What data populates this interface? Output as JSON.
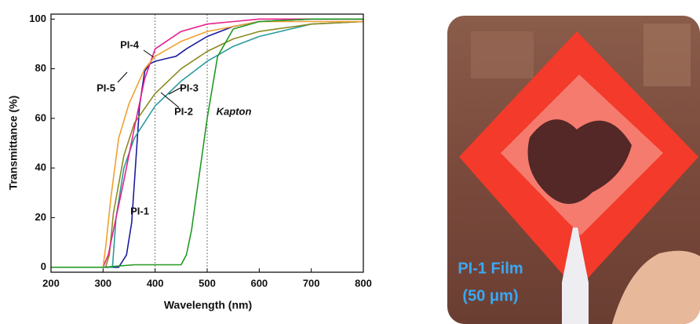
{
  "chart_data": {
    "type": "line",
    "xlabel": "Wavelength (nm)",
    "ylabel": "Transmittance (%)",
    "xlim": [
      200,
      800
    ],
    "ylim": [
      -2,
      102
    ],
    "xticks": [
      200,
      300,
      400,
      500,
      600,
      700,
      800
    ],
    "yticks": [
      0,
      20,
      40,
      60,
      80,
      100
    ],
    "reference_lines_x": [
      400,
      500
    ],
    "series": [
      {
        "name": "PI-1",
        "color": "#1c1c9e",
        "x": [
          300,
          330,
          345,
          355,
          362,
          370,
          380,
          390,
          400,
          420,
          440,
          460,
          500,
          550,
          600,
          700,
          800
        ],
        "values": [
          0,
          0,
          5,
          18,
          40,
          65,
          79,
          82,
          83,
          84,
          85,
          88,
          93,
          97,
          99,
          100,
          100
        ]
      },
      {
        "name": "PI-2",
        "color": "#2a9a9c",
        "x": [
          310,
          318,
          325,
          340,
          360,
          400,
          450,
          500,
          550,
          600,
          700,
          800
        ],
        "values": [
          0,
          0,
          20,
          40,
          52,
          65,
          75,
          83,
          89,
          93,
          98,
          99
        ]
      },
      {
        "name": "PI-3",
        "color": "#8c8a22",
        "x": [
          305,
          312,
          320,
          340,
          360,
          400,
          450,
          500,
          550,
          600,
          700,
          800
        ],
        "values": [
          0,
          5,
          22,
          45,
          58,
          70,
          80,
          87,
          92,
          95,
          98,
          99
        ]
      },
      {
        "name": "PI-4",
        "color": "#e8208c",
        "x": [
          300,
          310,
          320,
          340,
          360,
          380,
          400,
          450,
          500,
          550,
          600,
          800
        ],
        "values": [
          0,
          5,
          15,
          35,
          56,
          76,
          88,
          95,
          98,
          99,
          100,
          100
        ]
      },
      {
        "name": "PI-5",
        "color": "#f0a030",
        "x": [
          300,
          305,
          315,
          330,
          350,
          380,
          400,
          450,
          500,
          600,
          800
        ],
        "values": [
          0,
          8,
          28,
          52,
          66,
          80,
          85,
          91,
          95,
          99,
          99
        ]
      },
      {
        "name": "Kapton",
        "color": "#229922",
        "x": [
          200,
          300,
          360,
          450,
          460,
          470,
          480,
          490,
          500,
          520,
          550,
          600,
          700,
          800
        ],
        "values": [
          0,
          0,
          1,
          1,
          5,
          15,
          30,
          45,
          60,
          85,
          96,
          99,
          100,
          100
        ]
      }
    ]
  },
  "photo": {
    "caption": [
      "PI-1 Film",
      "(50 μm)"
    ]
  }
}
